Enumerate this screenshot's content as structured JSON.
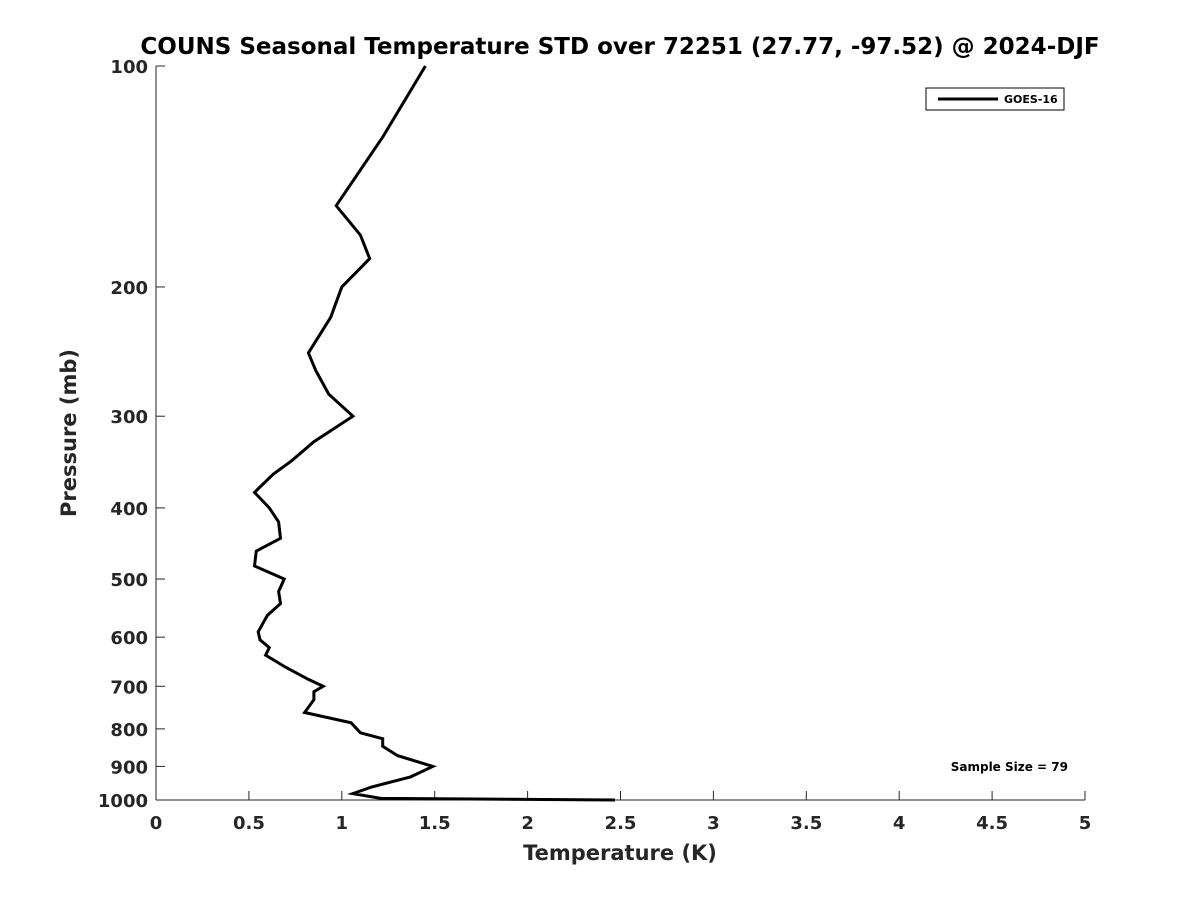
{
  "chart_data": {
    "type": "line",
    "title": "COUNS Seasonal Temperature STD over 72251 (27.77, -97.52) @ 2024-DJF",
    "xlabel": "Temperature (K)",
    "ylabel": "Pressure (mb)",
    "xlim": [
      0,
      5
    ],
    "ylim": [
      100,
      1000
    ],
    "y_scale": "log",
    "y_reversed": true,
    "x_ticks": [
      "0",
      "0.5",
      "1",
      "1.5",
      "2",
      "2.5",
      "3",
      "3.5",
      "4",
      "4.5",
      "5"
    ],
    "y_ticks": [
      "100",
      "200",
      "300",
      "400",
      "500",
      "600",
      "700",
      "800",
      "900",
      "1000"
    ],
    "grid": false,
    "legend": {
      "position": "top-right",
      "entries": [
        "GOES-16"
      ]
    },
    "annotations": [
      "Sample Size = 79"
    ],
    "series": [
      {
        "name": "GOES-16",
        "color": "#000000",
        "points": [
          [
            1.45,
            100
          ],
          [
            1.22,
            125
          ],
          [
            0.97,
            155
          ],
          [
            1.1,
            170
          ],
          [
            1.15,
            183
          ],
          [
            1.0,
            200
          ],
          [
            0.94,
            220
          ],
          [
            0.82,
            246
          ],
          [
            0.86,
            260
          ],
          [
            0.93,
            280
          ],
          [
            1.06,
            300
          ],
          [
            0.85,
            325
          ],
          [
            0.73,
            345
          ],
          [
            0.63,
            360
          ],
          [
            0.53,
            381
          ],
          [
            0.61,
            400
          ],
          [
            0.66,
            418
          ],
          [
            0.67,
            440
          ],
          [
            0.54,
            458
          ],
          [
            0.53,
            480
          ],
          [
            0.69,
            500
          ],
          [
            0.66,
            520
          ],
          [
            0.67,
            540
          ],
          [
            0.6,
            560
          ],
          [
            0.55,
            590
          ],
          [
            0.56,
            605
          ],
          [
            0.61,
            620
          ],
          [
            0.59,
            635
          ],
          [
            0.7,
            660
          ],
          [
            0.82,
            685
          ],
          [
            0.9,
            700
          ],
          [
            0.85,
            712
          ],
          [
            0.85,
            730
          ],
          [
            0.8,
            760
          ],
          [
            1.05,
            785
          ],
          [
            1.1,
            810
          ],
          [
            1.22,
            825
          ],
          [
            1.22,
            845
          ],
          [
            1.3,
            870
          ],
          [
            1.49,
            900
          ],
          [
            1.43,
            915
          ],
          [
            1.37,
            930
          ],
          [
            1.16,
            960
          ],
          [
            1.06,
            980
          ],
          [
            1.21,
            995
          ],
          [
            2.47,
            1000
          ]
        ]
      }
    ]
  }
}
